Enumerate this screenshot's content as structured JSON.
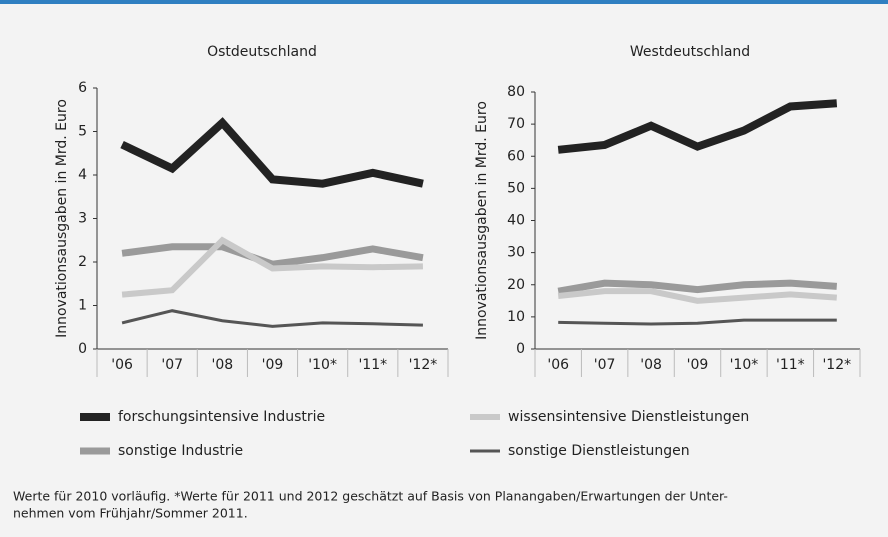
{
  "chart_data": [
    {
      "type": "line",
      "title": "Ostdeutschland",
      "y_label": "Innovationsausgaben in Mrd. Euro",
      "categories": [
        "'06",
        "'07",
        "'08",
        "'09",
        "'10*",
        "'11*",
        "'12*"
      ],
      "ylim": [
        0,
        6
      ],
      "yticks": [
        0,
        1,
        2,
        3,
        4,
        5,
        6
      ],
      "series": [
        {
          "name": "forschungsintensive Industrie",
          "color": "#222222",
          "values": [
            4.7,
            4.15,
            5.2,
            3.9,
            3.8,
            4.05,
            3.8
          ]
        },
        {
          "name": "sonstige Industrie",
          "color": "#9a9a9a",
          "values": [
            2.2,
            2.35,
            2.35,
            1.95,
            2.1,
            2.3,
            2.1
          ]
        },
        {
          "name": "wissensintensive Dienstleistungen",
          "color": "#c9c9c9",
          "values": [
            1.25,
            1.35,
            2.5,
            1.85,
            1.9,
            1.88,
            1.9
          ]
        },
        {
          "name": "sonstige Dienstleistungen",
          "color": "#555555",
          "values": [
            0.6,
            0.88,
            0.65,
            0.52,
            0.6,
            0.58,
            0.55
          ]
        }
      ]
    },
    {
      "type": "line",
      "title": "Westdeutschland",
      "y_label": "Innovationsausgaben in Mrd. Euro",
      "categories": [
        "'06",
        "'07",
        "'08",
        "'09",
        "'10*",
        "'11*",
        "'12*"
      ],
      "ylim": [
        0,
        80
      ],
      "yticks": [
        0,
        10,
        20,
        30,
        40,
        50,
        60,
        70,
        80
      ],
      "series": [
        {
          "name": "forschungsintensive Industrie",
          "color": "#222222",
          "values": [
            62,
            63.5,
            69.5,
            63,
            68,
            75.5,
            76.5
          ]
        },
        {
          "name": "sonstige Industrie",
          "color": "#9a9a9a",
          "values": [
            18,
            20.5,
            20,
            18.5,
            20,
            20.5,
            19.5
          ]
        },
        {
          "name": "wissensintensive Dienstleistungen",
          "color": "#c9c9c9",
          "values": [
            16.5,
            18,
            18,
            15,
            16,
            17,
            16
          ]
        },
        {
          "name": "sonstige Dienstleistungen",
          "color": "#555555",
          "values": [
            8.3,
            8,
            7.8,
            8,
            9,
            9,
            9
          ]
        }
      ]
    }
  ],
  "footnote": [
    "Werte für 2010 vorläufig. *Werte für 2011 und 2012 geschätzt auf Basis von Planangaben/Erwartungen der Unter-",
    "nehmen vom Frühjahr/Sommer 2011."
  ]
}
